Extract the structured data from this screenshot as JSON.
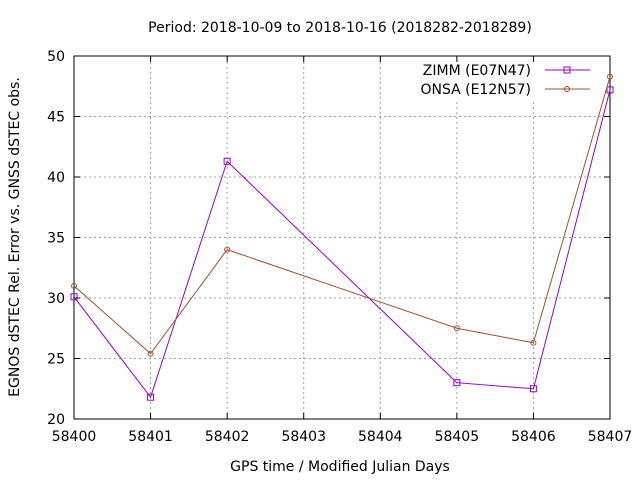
{
  "chart_data": {
    "type": "line",
    "title": "Period: 2018-10-09 to 2018-10-16 (2018282-2018289)",
    "xlabel": "GPS time / Modified Julian Days",
    "ylabel": "EGNOS dSTEC Rel. Error vs. GNSS dSTEC obs.",
    "xlim": [
      58400,
      58407
    ],
    "ylim": [
      20,
      50
    ],
    "xticks": [
      "58400",
      "58401",
      "58402",
      "58403",
      "58404",
      "58405",
      "58406",
      "58407"
    ],
    "yticks": [
      "20",
      "25",
      "30",
      "35",
      "40",
      "45",
      "50"
    ],
    "grid": true,
    "legend_position": "top-right",
    "series": [
      {
        "name": "ZIMM (E07N47)",
        "color": "#9400d3",
        "marker": "square",
        "x": [
          58400,
          58401,
          58402,
          58405,
          58406,
          58407
        ],
        "y": [
          30.1,
          21.8,
          41.3,
          23.0,
          22.5,
          47.2
        ]
      },
      {
        "name": "ONSA (E12N57)",
        "color": "#a0522d",
        "marker": "circle",
        "x": [
          58400,
          58401,
          58402,
          58405,
          58406,
          58407
        ],
        "y": [
          31.0,
          25.4,
          34.0,
          27.5,
          26.3,
          48.3
        ]
      }
    ]
  }
}
